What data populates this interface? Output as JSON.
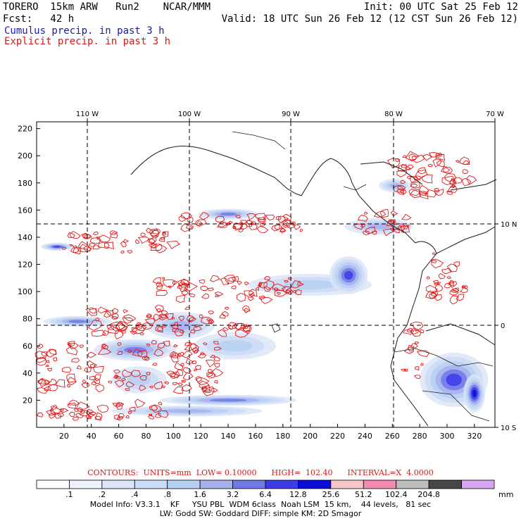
{
  "header": {
    "line1_left": "TORERO  15km ARW   Run2    NCAR/MMM",
    "line1_right": "Init: 00 UTC Sat 25 Feb 12",
    "line2_left": "Fcst:   42 h",
    "line2_right": "Valid: 18 UTC Sun 26 Feb 12 (12 CST Sun 26 Feb 12)",
    "field_cumulus": "Cumulus precip. in past 3 h",
    "field_explicit": "Explicit precip. in past 3 h"
  },
  "chart_data": {
    "type": "heatmap",
    "title": "Cumulus precip. in past 3 h / Explicit precip. in past 3 h",
    "x_grid_ticks": [
      "20",
      "40",
      "60",
      "80",
      "100",
      "120",
      "140",
      "160",
      "180",
      "200",
      "220",
      "240",
      "260",
      "280",
      "300",
      "320"
    ],
    "y_grid_ticks": [
      "20",
      "40",
      "60",
      "80",
      "100",
      "120",
      "140",
      "160",
      "180",
      "200",
      "220"
    ],
    "lon_labels": [
      "110 W",
      "100 W",
      "90 W",
      "80 W",
      "70 W"
    ],
    "lat_labels": [
      "10 N",
      "0",
      "10 S"
    ],
    "xlim": [
      0,
      335
    ],
    "ylim": [
      0,
      225
    ],
    "contours": {
      "label": "CONTOURS:",
      "units": "UNITS=mm",
      "low": "LOW= 0.10000",
      "high": "HIGH=  102.40",
      "interval": "INTERVAL=X  4.0000"
    },
    "color_scale": {
      "unit": "mm",
      "thresholds": [
        ".1",
        ".2",
        ".4",
        ".8",
        "1.6",
        "3.2",
        "6.4",
        "12.8",
        "25.6",
        "51.2",
        "102.4",
        "204.8"
      ],
      "colors": [
        "#ffffff",
        "#eef2fb",
        "#dde6f8",
        "#cbdcf6",
        "#b8d0f2",
        "#a8b0ee",
        "#6f79e6",
        "#3c3ce6",
        "#0c0cd8",
        "#f6c6c6",
        "#f28ab2",
        "#bdbdbd",
        "#474747",
        "#d9a6f4"
      ]
    },
    "cumulus_regions": [
      {
        "x": 15,
        "y": 133,
        "rx": 12,
        "ry": 3,
        "level": 6
      },
      {
        "x": 30,
        "y": 78,
        "rx": 25,
        "ry": 4,
        "level": 5
      },
      {
        "x": 72,
        "y": 57,
        "rx": 30,
        "ry": 8,
        "level": 5
      },
      {
        "x": 105,
        "y": 75,
        "rx": 25,
        "ry": 10,
        "level": 4
      },
      {
        "x": 140,
        "y": 20,
        "rx": 50,
        "ry": 4,
        "level": 5
      },
      {
        "x": 110,
        "y": 12,
        "rx": 55,
        "ry": 4,
        "level": 4
      },
      {
        "x": 200,
        "y": 105,
        "rx": 45,
        "ry": 8,
        "level": 3
      },
      {
        "x": 228,
        "y": 112,
        "rx": 14,
        "ry": 14,
        "level": 6
      },
      {
        "x": 140,
        "y": 157,
        "rx": 22,
        "ry": 4,
        "level": 5
      },
      {
        "x": 250,
        "y": 148,
        "rx": 25,
        "ry": 6,
        "level": 4
      },
      {
        "x": 262,
        "y": 178,
        "rx": 12,
        "ry": 5,
        "level": 4
      },
      {
        "x": 305,
        "y": 35,
        "rx": 25,
        "ry": 20,
        "level": 6
      },
      {
        "x": 320,
        "y": 25,
        "rx": 8,
        "ry": 14,
        "level": 7
      },
      {
        "x": 145,
        "y": 60,
        "rx": 30,
        "ry": 10,
        "level": 3
      },
      {
        "x": 75,
        "y": 35,
        "rx": 20,
        "ry": 10,
        "level": 3
      }
    ]
  },
  "footer": {
    "model_info": "Model Info: V3.3.1    KF     YSU PBL  WDM 6class  Noah LSM  15 km,    44 levels,   81 sec",
    "model_info_line2": "LW: Godd SW: Goddard DIFF: simple KM: 2D Smagor"
  }
}
